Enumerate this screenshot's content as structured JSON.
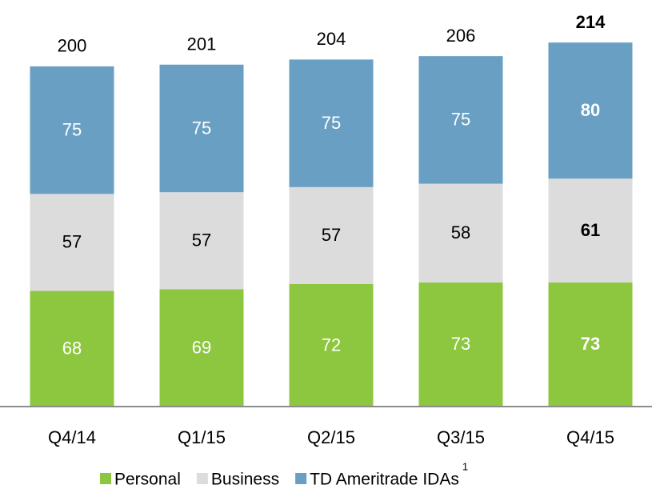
{
  "chart_data": {
    "type": "stacked_bar",
    "categories": [
      "Q4/14",
      "Q1/15",
      "Q2/15",
      "Q3/15",
      "Q4/15"
    ],
    "series": [
      {
        "name": "Personal",
        "color": "#8dc63f",
        "values": [
          68,
          69,
          72,
          73,
          73
        ]
      },
      {
        "name": "Business",
        "color": "#dcdcdc",
        "values": [
          57,
          57,
          57,
          58,
          61
        ]
      },
      {
        "name": "TD Ameritrade IDAs",
        "color": "#6a9fc4",
        "values": [
          75,
          75,
          75,
          75,
          80
        ]
      }
    ],
    "totals": [
      200,
      201,
      204,
      206,
      214
    ],
    "legend_footnote": "1",
    "highlight_last": true,
    "ylim": [
      0,
      239
    ]
  }
}
